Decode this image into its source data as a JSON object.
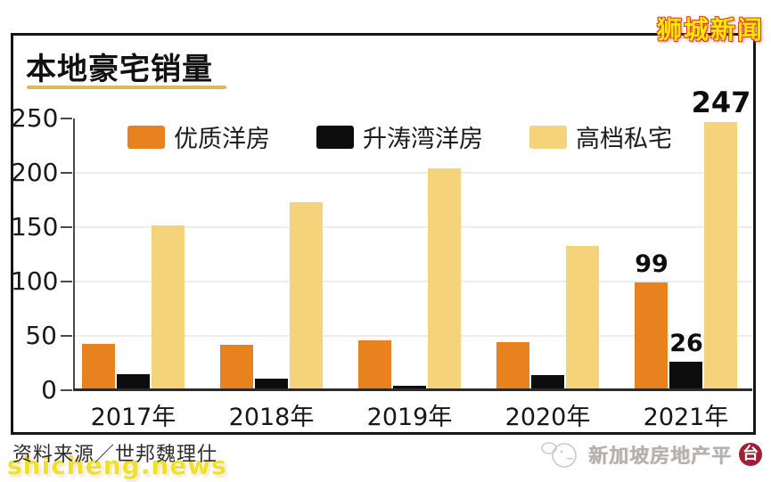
{
  "header": {
    "brand": "狮城新闻"
  },
  "chart_data": {
    "type": "bar",
    "title": "本地豪宅销量",
    "categories": [
      "2017年",
      "2018年",
      "2019年",
      "2020年",
      "2021年"
    ],
    "series": [
      {
        "name": "优质洋房",
        "color": "#e8821f",
        "values": [
          43,
          42,
          46,
          44,
          99
        ]
      },
      {
        "name": "升涛湾洋房",
        "color": "#0d0d0d",
        "values": [
          15,
          11,
          4,
          14,
          26
        ]
      },
      {
        "name": "高档私宅",
        "color": "#f4d37b",
        "values": [
          152,
          173,
          204,
          133,
          247
        ]
      }
    ],
    "ylim": [
      0,
      250
    ],
    "yticks": [
      0,
      50,
      100,
      150,
      200,
      250
    ],
    "data_labels": {
      "category_index": 4,
      "values": [
        "99",
        "26",
        "247"
      ]
    },
    "legend_position": "top",
    "grid": "horizontal",
    "accent_underline_color": "#e2b55c"
  },
  "footer": {
    "source": "资料来源／世邦魏理仕",
    "site": "shicheng.news",
    "watermark_text": "新加坡房地产平",
    "watermark_badge": "台"
  }
}
